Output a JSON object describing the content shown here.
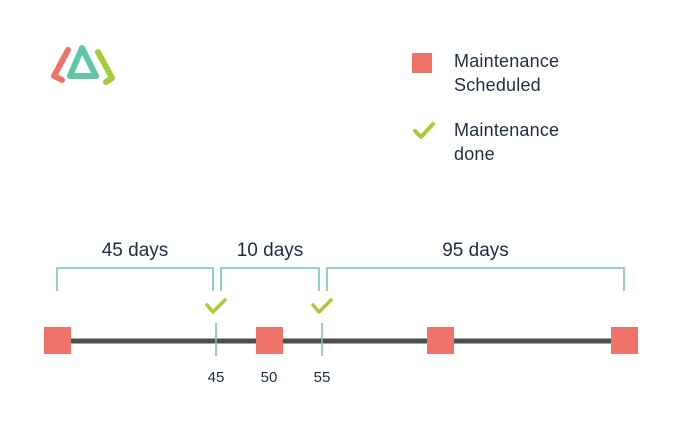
{
  "legend": {
    "scheduled_label": "Maintenance\nScheduled",
    "done_label": "Maintenance\ndone"
  },
  "intervals": [
    {
      "label": "45 days",
      "from": 0,
      "to": 45
    },
    {
      "label": "10 days",
      "from": 45,
      "to": 55
    },
    {
      "label": "95 days",
      "from": 55,
      "to": 150
    }
  ],
  "scheduled_points": [
    0,
    50,
    100,
    150
  ],
  "done_points": [
    45,
    55
  ],
  "tick_labels": [
    {
      "value": 45,
      "text": "45"
    },
    {
      "value": 50,
      "text": "50"
    },
    {
      "value": 55,
      "text": "55"
    }
  ],
  "colors": {
    "scheduled": "#f0736a",
    "done_check": "#a6cc3c",
    "bracket": "#73c9a6",
    "line": "#4d4d4d",
    "text": "#1f2d44",
    "logo_red": "#f0736a",
    "logo_teal": "#5fc7a8",
    "logo_green": "#a6cc3c"
  }
}
